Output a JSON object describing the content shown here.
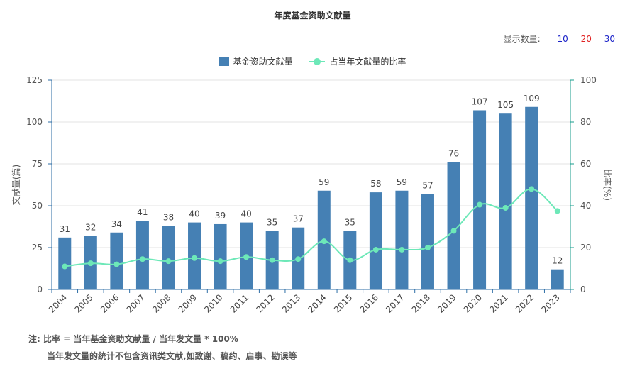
{
  "title": "年度基金资助文献量",
  "controls": {
    "label": "显示数量:",
    "options": [
      {
        "text": "10",
        "color": "#1a22c8"
      },
      {
        "text": "20",
        "color": "#e02020"
      },
      {
        "text": "30",
        "color": "#1a22c8"
      }
    ]
  },
  "notes": {
    "line1": "注:  比率 = 当年基金资助文献量 / 当年发文量 * 100%",
    "line2": "当年发文量的统计不包含资讯类文献,如致谢、稿约、启事、勘误等"
  },
  "chart_data": {
    "type": "bar",
    "title": "年度基金资助文献量",
    "categories": [
      "2004",
      "2005",
      "2006",
      "2007",
      "2008",
      "2009",
      "2010",
      "2011",
      "2012",
      "2013",
      "2014",
      "2015",
      "2016",
      "2017",
      "2018",
      "2019",
      "2020",
      "2021",
      "2022",
      "2023"
    ],
    "series": [
      {
        "name": "基金资助文献量",
        "type": "bar",
        "axis": "left",
        "color": "#4580b4",
        "values": [
          31,
          32,
          34,
          41,
          38,
          40,
          39,
          40,
          35,
          37,
          59,
          35,
          58,
          59,
          57,
          76,
          107,
          105,
          109,
          12
        ]
      },
      {
        "name": "占当年文献量的比率",
        "type": "line",
        "axis": "right",
        "color": "#6de8b8",
        "values": [
          11,
          12.5,
          12,
          14.5,
          13.5,
          15,
          13.5,
          15.5,
          14,
          14.5,
          23,
          14,
          19,
          19,
          20,
          28,
          40.5,
          39,
          48,
          37.5
        ]
      }
    ],
    "ylabel": "文献量(篇)",
    "y2label": "比率(%)",
    "ylim": [
      0,
      125
    ],
    "y2lim": [
      0,
      100
    ],
    "yticks": [
      0,
      25,
      50,
      75,
      100,
      125
    ],
    "y2ticks": [
      0,
      20,
      40,
      60,
      80,
      100
    ],
    "legend_position": "top-center",
    "grid": true
  }
}
